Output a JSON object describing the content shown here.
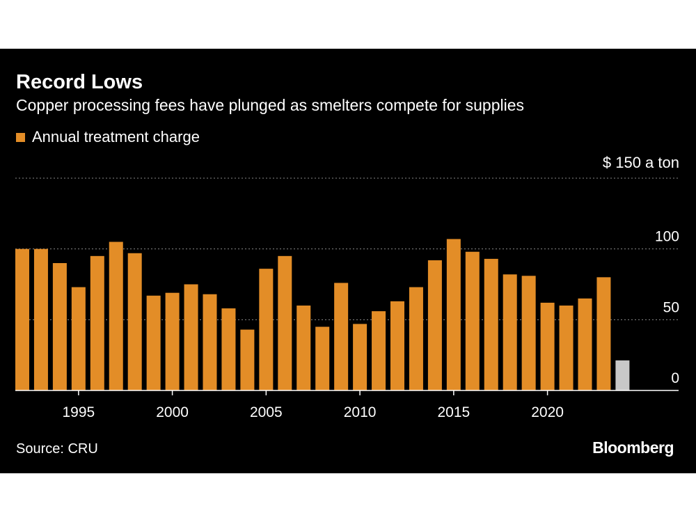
{
  "title": "Record Lows",
  "subtitle": "Copper processing fees have plunged as smelters compete for supplies",
  "source": "Source: CRU",
  "brand": "Bloomberg",
  "colors": {
    "background": "#000000",
    "bar": "#E38D27",
    "highlight_bar": "#C8C8C8",
    "grid": "#8a8a8a",
    "text": "#ffffff"
  },
  "chart_data": {
    "type": "bar",
    "title": "Record Lows",
    "subtitle": "Copper processing fees have plunged as smelters compete for supplies",
    "legend": [
      {
        "name": "Annual treatment charge",
        "color": "#E38D27"
      }
    ],
    "unit_label": "$ 150 a ton",
    "ylim": [
      0,
      150
    ],
    "yticks": [
      {
        "value": 0,
        "label": "0"
      },
      {
        "value": 50,
        "label": "50"
      },
      {
        "value": 100,
        "label": "100"
      },
      {
        "value": 150,
        "label": "$ 150 a ton"
      }
    ],
    "xtick_labels": [
      "1995",
      "2000",
      "2005",
      "2010",
      "2015",
      "2020"
    ],
    "x": [
      1992,
      1993,
      1994,
      1995,
      1996,
      1997,
      1998,
      1999,
      2000,
      2001,
      2002,
      2003,
      2004,
      2005,
      2006,
      2007,
      2008,
      2009,
      2010,
      2011,
      2012,
      2013,
      2014,
      2015,
      2016,
      2017,
      2018,
      2019,
      2020,
      2021,
      2022,
      2023,
      2024
    ],
    "values": [
      100,
      100,
      90,
      73,
      95,
      105,
      97,
      67,
      69,
      75,
      68,
      58,
      43,
      86,
      95,
      60,
      45,
      76,
      47,
      56,
      63,
      73,
      92,
      107,
      98,
      93,
      82,
      81,
      62,
      60,
      65,
      80,
      21.25
    ],
    "highlight_index": 32
  }
}
